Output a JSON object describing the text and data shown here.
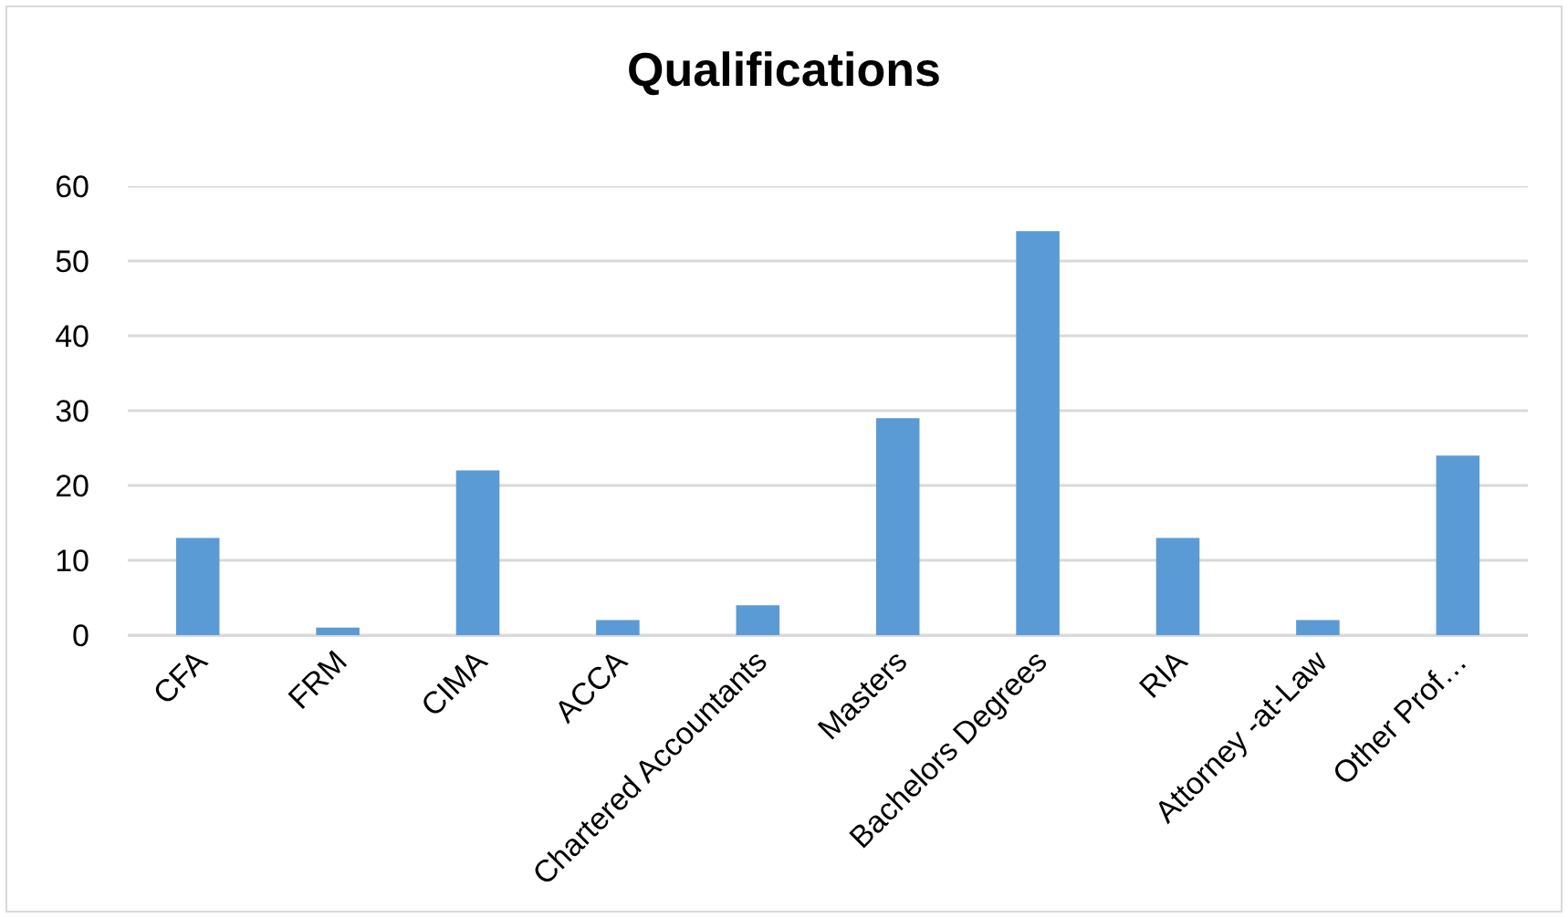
{
  "chart_data": {
    "type": "bar",
    "title": "Qualifications",
    "categories": [
      "CFA",
      "FRM",
      "CIMA",
      "ACCA",
      "Chartered Accountants",
      "Masters",
      "Bachelors Degrees",
      "RIA",
      "Attorney -at-Law",
      "Other Prof…"
    ],
    "values": [
      13,
      1,
      22,
      2,
      4,
      29,
      54,
      13,
      2,
      24
    ],
    "color": "#5b9bd5",
    "ylim": [
      0,
      60
    ],
    "yticks": [
      0,
      10,
      20,
      30,
      40,
      50,
      60
    ],
    "grid": "y"
  }
}
